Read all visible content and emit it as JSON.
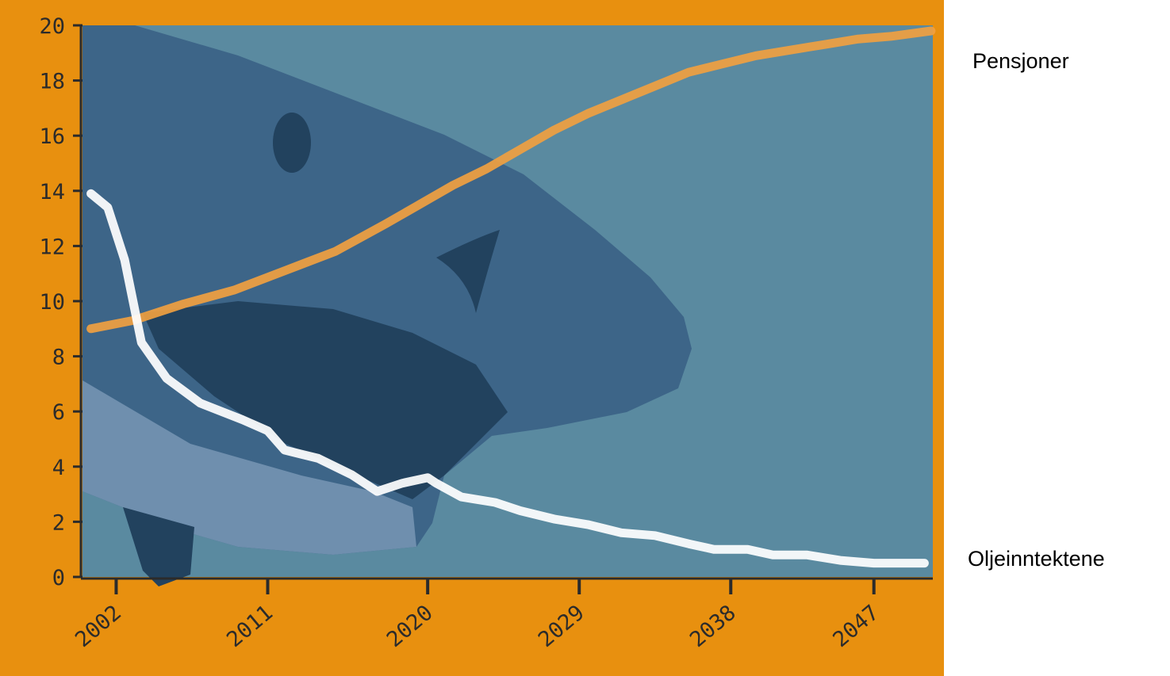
{
  "colors": {
    "frame": "#e8900f",
    "plot_background": "#5a8aa0",
    "axis": "#2b2b2b",
    "shark_body": "#3d6588",
    "shark_belly": "#6f8fae",
    "shark_mouth": "#22425e",
    "pensjoner_line": "#f0a040",
    "olje_line": "#ffffff"
  },
  "chart_data": {
    "type": "line",
    "title": "",
    "xlabel": "",
    "ylabel": "",
    "ylim": [
      0,
      20
    ],
    "xlim": [
      2000,
      2050.5
    ],
    "yticks": [
      "0",
      "2",
      "4",
      "6",
      "8",
      "10",
      "12",
      "14",
      "16",
      "18",
      "20"
    ],
    "xticks": [
      {
        "label": "2002",
        "x": 2002
      },
      {
        "label": "2011",
        "x": 2011
      },
      {
        "label": "2020",
        "x": 2020.5
      },
      {
        "label": "2029",
        "x": 2029.5
      },
      {
        "label": "2038",
        "x": 2038.5
      },
      {
        "label": "2047",
        "x": 2047
      }
    ],
    "grid": false,
    "series": [
      {
        "name": "Pensjoner",
        "color": "#f0a040",
        "x": [
          2000.5,
          2003,
          2006,
          2009,
          2012,
          2015,
          2018,
          2020,
          2022,
          2024,
          2026,
          2028,
          2030,
          2032,
          2034,
          2036,
          2038,
          2040,
          2042,
          2044,
          2046,
          2048,
          2050.4
        ],
        "y": [
          9.0,
          9.3,
          9.9,
          10.4,
          11.1,
          11.8,
          12.8,
          13.5,
          14.2,
          14.8,
          15.5,
          16.2,
          16.8,
          17.3,
          17.8,
          18.3,
          18.6,
          18.9,
          19.1,
          19.3,
          19.5,
          19.6,
          19.8
        ]
      },
      {
        "name": "Oljeinntektene",
        "color": "#ffffff",
        "x": [
          2000.5,
          2001.5,
          2002.5,
          2003.5,
          2005,
          2007,
          2009.5,
          2011,
          2012,
          2014,
          2016,
          2017.5,
          2019,
          2020.5,
          2021,
          2022.5,
          2024.5,
          2026,
          2028,
          2030,
          2032,
          2034,
          2036,
          2037.5,
          2039.5,
          2041,
          2043,
          2045,
          2047,
          2049,
          2050
        ],
        "y": [
          13.9,
          13.4,
          11.5,
          8.5,
          7.2,
          6.3,
          5.7,
          5.3,
          4.6,
          4.3,
          3.7,
          3.1,
          3.4,
          3.6,
          3.4,
          2.9,
          2.7,
          2.4,
          2.1,
          1.9,
          1.6,
          1.5,
          1.2,
          1.0,
          1.0,
          0.8,
          0.8,
          0.6,
          0.5,
          0.5,
          0.5
        ]
      }
    ]
  },
  "labels": {
    "pensjoner": "Pensjoner",
    "oljeinntektene": "Oljeinntektene"
  }
}
